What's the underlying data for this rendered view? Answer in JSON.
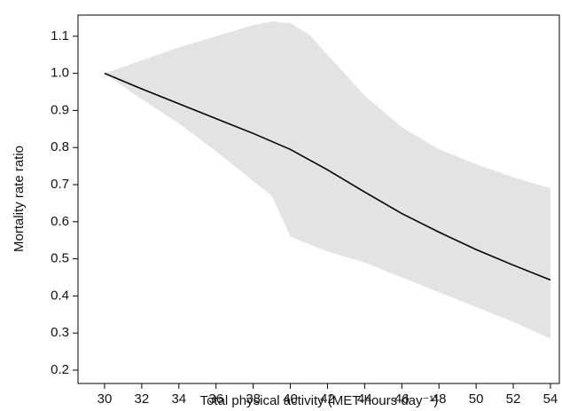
{
  "chart_data": {
    "type": "line",
    "x_label": "Total physical activity (MET-hours day⁻¹)",
    "y_label": "Mortality rate ratio",
    "x": [
      30,
      32,
      34,
      36,
      38,
      40,
      42,
      44,
      46,
      48,
      50,
      52,
      54
    ],
    "values": [
      1.0,
      0.958,
      0.918,
      0.878,
      0.838,
      0.795,
      0.74,
      0.68,
      0.622,
      0.572,
      0.525,
      0.483,
      0.443
    ],
    "color": "#000000",
    "band": {
      "x": [
        30,
        32,
        34,
        36,
        38,
        39,
        40,
        41,
        42,
        44,
        46,
        48,
        50,
        52,
        54
      ],
      "upper": [
        1.0,
        1.035,
        1.07,
        1.1,
        1.13,
        1.14,
        1.135,
        1.105,
        1.05,
        0.94,
        0.855,
        0.795,
        0.755,
        0.72,
        0.69
      ],
      "lower": [
        1.0,
        0.93,
        0.865,
        0.79,
        0.71,
        0.67,
        0.56,
        0.54,
        0.52,
        0.49,
        0.45,
        0.41,
        0.37,
        0.33,
        0.285
      ],
      "color": "#e3e3e3"
    },
    "xlim": [
      28.57,
      54.48
    ],
    "ylim": [
      0.164,
      1.157
    ],
    "xticks": [
      30,
      32,
      34,
      36,
      38,
      40,
      42,
      44,
      46,
      48,
      50,
      52,
      54
    ],
    "yticks": [
      0.2,
      0.3,
      0.4,
      0.5,
      0.6,
      0.7,
      0.8,
      0.9,
      {
        "value": 1.0,
        "label": "1.0"
      },
      1.1
    ]
  }
}
